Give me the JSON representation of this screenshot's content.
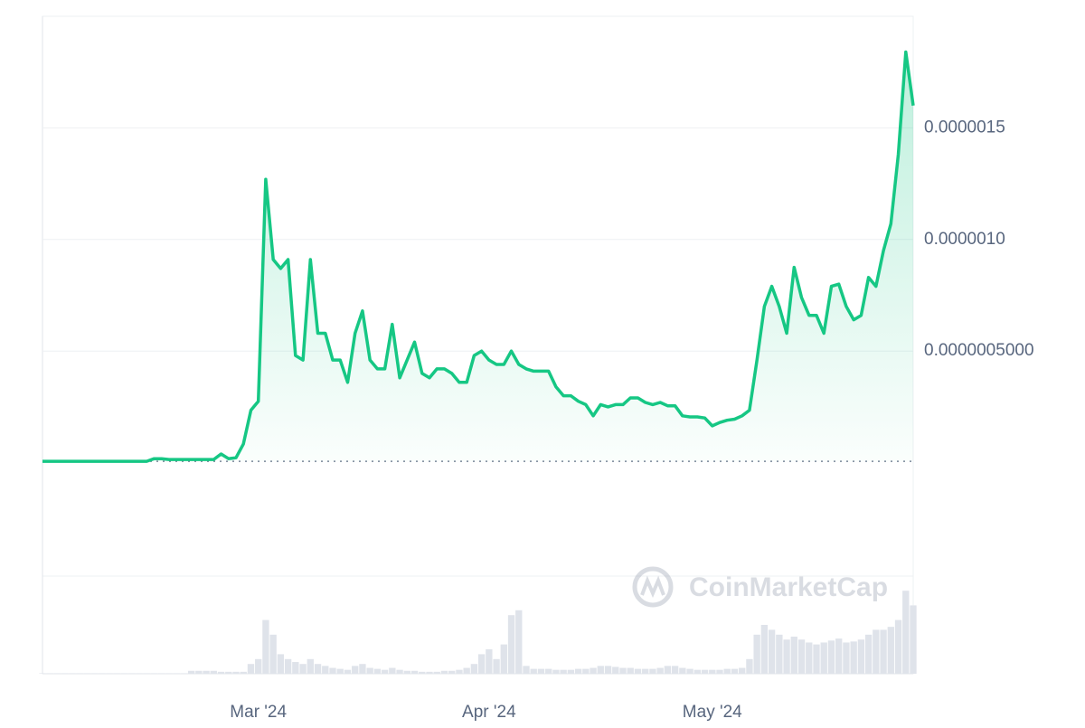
{
  "chart_data": [
    {
      "type": "line",
      "watermark": "CoinMarketCap",
      "color": "#16c784",
      "values": [
        6e-09,
        6e-09,
        6e-09,
        6e-09,
        6e-09,
        6e-09,
        6e-09,
        6e-09,
        6e-09,
        6e-09,
        6e-09,
        6e-09,
        6e-09,
        6e-09,
        6e-09,
        1.8e-08,
        1.8e-08,
        1.4e-08,
        1.4e-08,
        1.4e-08,
        1.4e-08,
        1.4e-08,
        1.4e-08,
        1.4e-08,
        3.9e-08,
        1.8e-08,
        2.2e-08,
        8.4e-08,
        2.35e-07,
        2.75e-07,
        1.27e-06,
        9.1e-07,
        8.7e-07,
        9.1e-07,
        4.8e-07,
        4.6e-07,
        9.1e-07,
        5.8e-07,
        5.8e-07,
        4.6e-07,
        4.6e-07,
        3.6e-07,
        5.8e-07,
        6.8e-07,
        4.6e-07,
        4.2e-07,
        4.2e-07,
        6.2e-07,
        3.8e-07,
        4.6e-07,
        5.4e-07,
        4e-07,
        3.8e-07,
        4.2e-07,
        4.2e-07,
        4e-07,
        3.6e-07,
        3.6e-07,
        4.8e-07,
        5e-07,
        4.6e-07,
        4.4e-07,
        4.4e-07,
        5e-07,
        4.4e-07,
        4.2e-07,
        4.1e-07,
        4.1e-07,
        4.1e-07,
        3.4e-07,
        3e-07,
        3e-07,
        2.75e-07,
        2.6e-07,
        2.1e-07,
        2.6e-07,
        2.5e-07,
        2.6e-07,
        2.6e-07,
        2.9e-07,
        2.9e-07,
        2.7e-07,
        2.6e-07,
        2.7e-07,
        2.55e-07,
        2.55e-07,
        2.1e-07,
        2.05e-07,
        2.05e-07,
        2e-07,
        1.65e-07,
        1.8e-07,
        1.9e-07,
        1.95e-07,
        2.1e-07,
        2.35e-07,
        4.6e-07,
        7e-07,
        7.9e-07,
        7e-07,
        5.8e-07,
        8.75e-07,
        7.4e-07,
        6.6e-07,
        6.6e-07,
        5.8e-07,
        7.9e-07,
        8e-07,
        7e-07,
        6.4e-07,
        6.6e-07,
        8.3e-07,
        7.9e-07,
        9.5e-07,
        1.07e-06,
        1.38e-06,
        1.84e-06,
        1.6e-06
      ],
      "xlim": [
        0,
        117
      ],
      "xticks": [
        {
          "value": 29,
          "label": "Mar '24"
        },
        {
          "value": 60,
          "label": "Apr '24"
        },
        {
          "value": 90,
          "label": "May '24"
        }
      ],
      "ylim": [
        -5e-07,
        2e-06
      ],
      "yticks": [
        {
          "value": 5e-07,
          "label": "0.0000005000"
        },
        {
          "value": 1e-06,
          "label": "0.0000010"
        },
        {
          "value": 1.5e-06,
          "label": "0.0000015"
        }
      ],
      "grid": true
    },
    {
      "type": "bar",
      "color": "#dfe3ea",
      "ylim": [
        0,
        100
      ],
      "values": [
        0.5,
        0.5,
        0.5,
        0.5,
        0.5,
        0.5,
        0.5,
        0.5,
        0.5,
        0.5,
        0.5,
        0.5,
        0.5,
        0.5,
        0.5,
        0.5,
        0.5,
        0.5,
        0.5,
        0.5,
        3,
        3,
        3,
        3,
        2,
        2,
        2,
        2,
        10,
        15,
        55,
        40,
        20,
        15,
        12,
        10,
        15,
        10,
        8,
        6,
        5,
        4,
        8,
        10,
        6,
        5,
        4,
        6,
        4,
        3,
        3,
        2,
        2,
        2,
        3,
        3,
        4,
        6,
        10,
        20,
        25,
        15,
        30,
        60,
        65,
        8,
        5,
        5,
        5,
        4,
        4,
        4,
        5,
        5,
        6,
        8,
        8,
        7,
        6,
        6,
        5,
        5,
        5,
        6,
        8,
        8,
        6,
        5,
        4,
        4,
        4,
        4,
        5,
        5,
        6,
        15,
        40,
        50,
        45,
        40,
        35,
        38,
        35,
        32,
        30,
        32,
        34,
        36,
        32,
        33,
        35,
        40,
        45,
        45,
        48,
        55,
        85,
        70
      ]
    }
  ]
}
